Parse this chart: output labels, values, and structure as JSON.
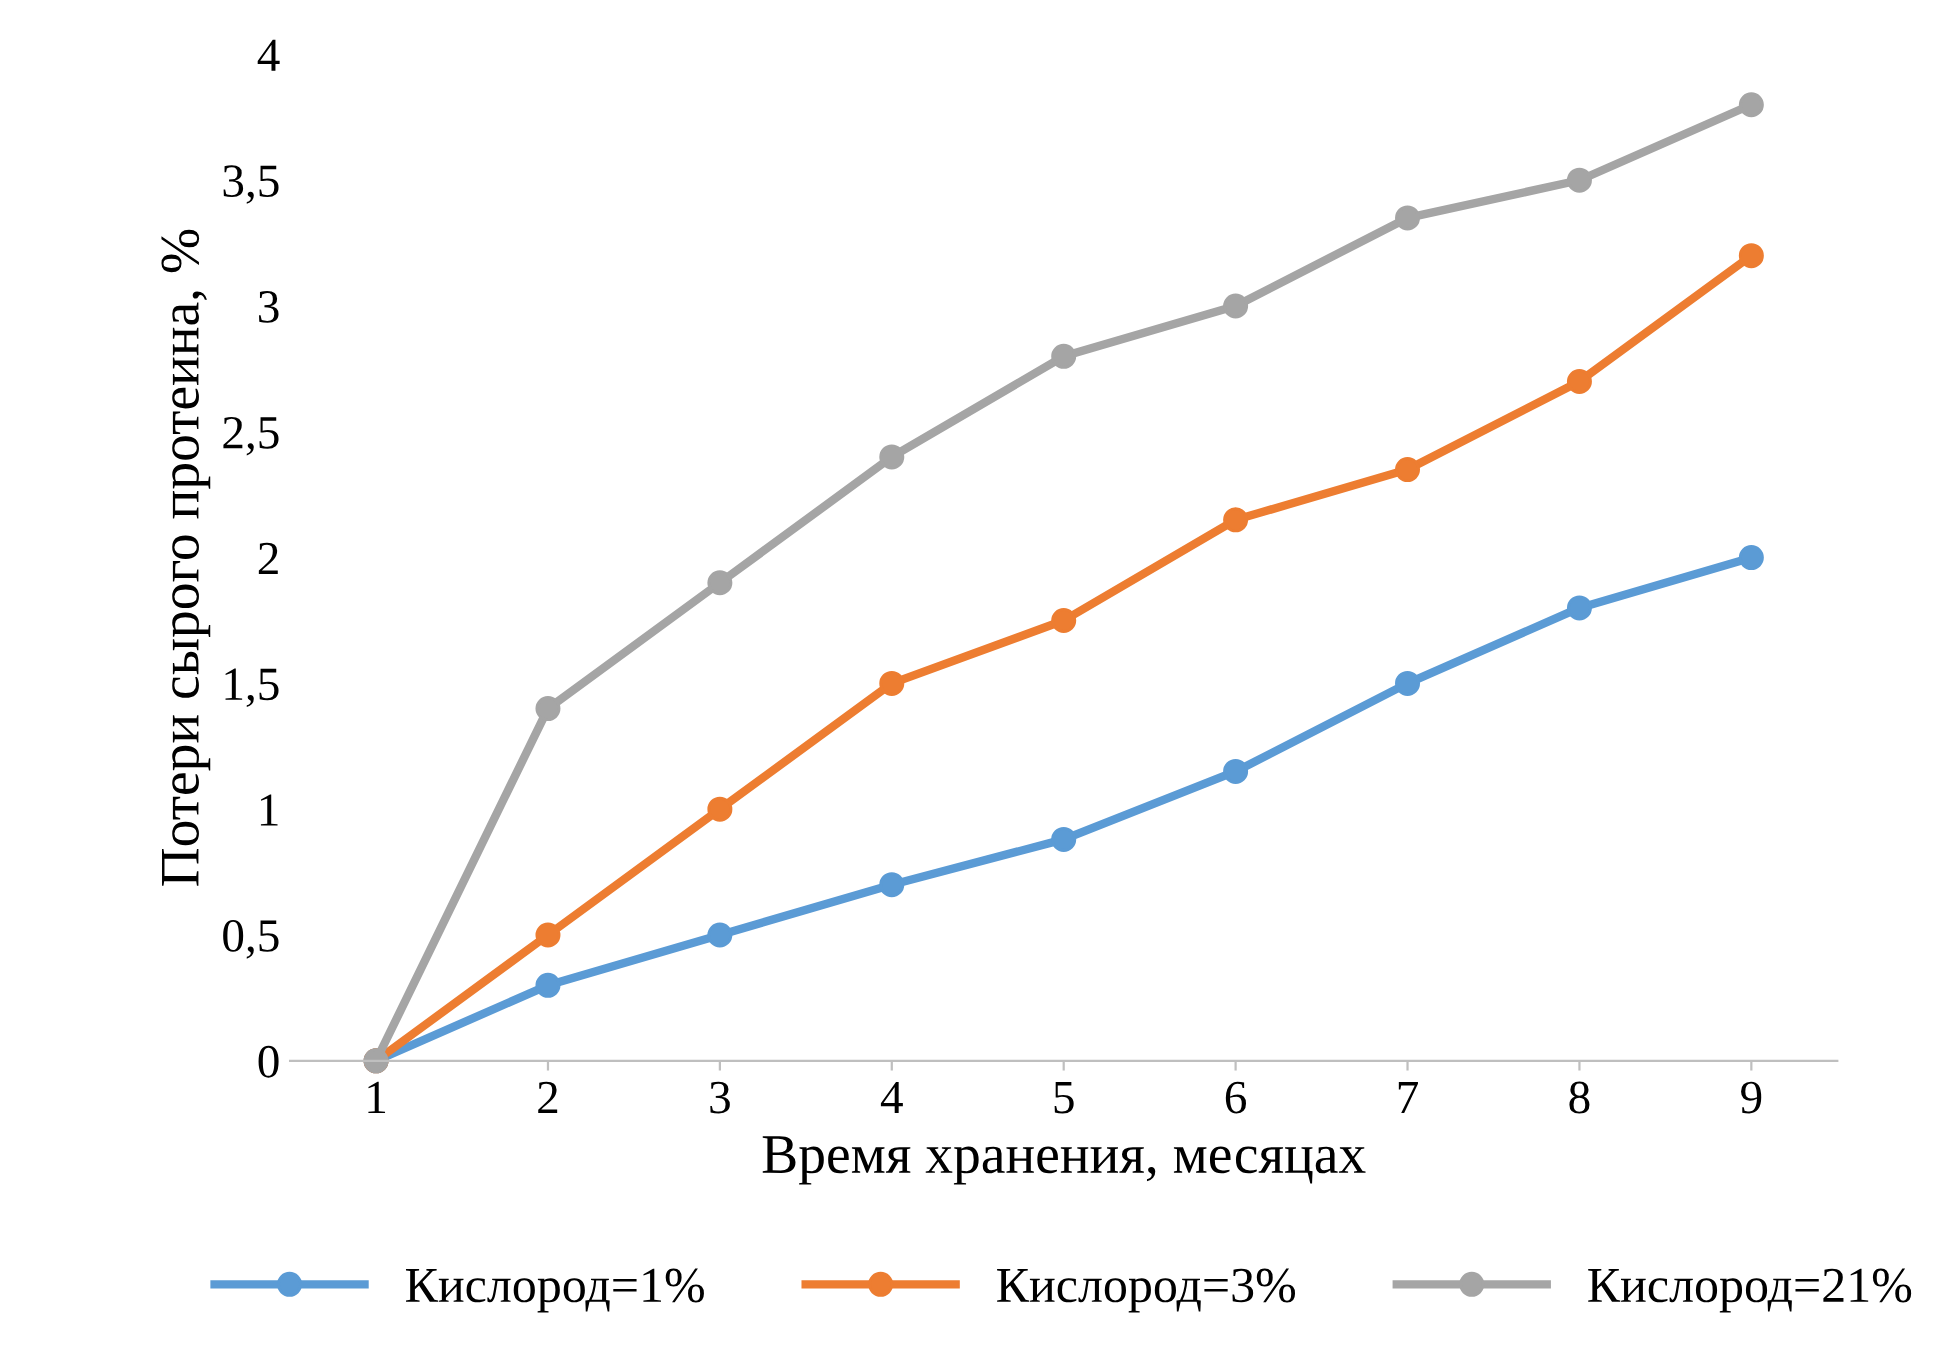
{
  "chart_data": {
    "type": "line",
    "xlabel": "Время хранения, месяцах",
    "ylabel": "Потери сырого протеина, %",
    "categories": [
      "1",
      "2",
      "3",
      "4",
      "5",
      "6",
      "7",
      "8",
      "9"
    ],
    "series": [
      {
        "name": "Кислород=1%",
        "color": "#5b9bd5",
        "values": [
          0,
          0.3,
          0.5,
          0.7,
          0.88,
          1.15,
          1.5,
          1.8,
          2.0
        ]
      },
      {
        "name": "Кислород=3%",
        "color": "#ed7d31",
        "values": [
          0,
          0.5,
          1.0,
          1.5,
          1.75,
          2.15,
          2.35,
          2.7,
          3.2
        ]
      },
      {
        "name": "Кислород=21%",
        "color": "#a5a5a5",
        "values": [
          0,
          1.4,
          1.9,
          2.4,
          2.8,
          3.0,
          3.35,
          3.5,
          3.8
        ]
      }
    ],
    "ylim": [
      0,
      4
    ],
    "yticks": [
      0,
      {
        "value": 0.5,
        "label": "0,5"
      },
      1,
      {
        "value": 1.5,
        "label": "1,5"
      },
      2,
      {
        "value": 2.5,
        "label": "2,5"
      },
      3,
      {
        "value": 3.5,
        "label": "3,5"
      },
      4
    ],
    "grid": false,
    "legend": "bottom",
    "marker": "circle",
    "line_style": "solid"
  }
}
